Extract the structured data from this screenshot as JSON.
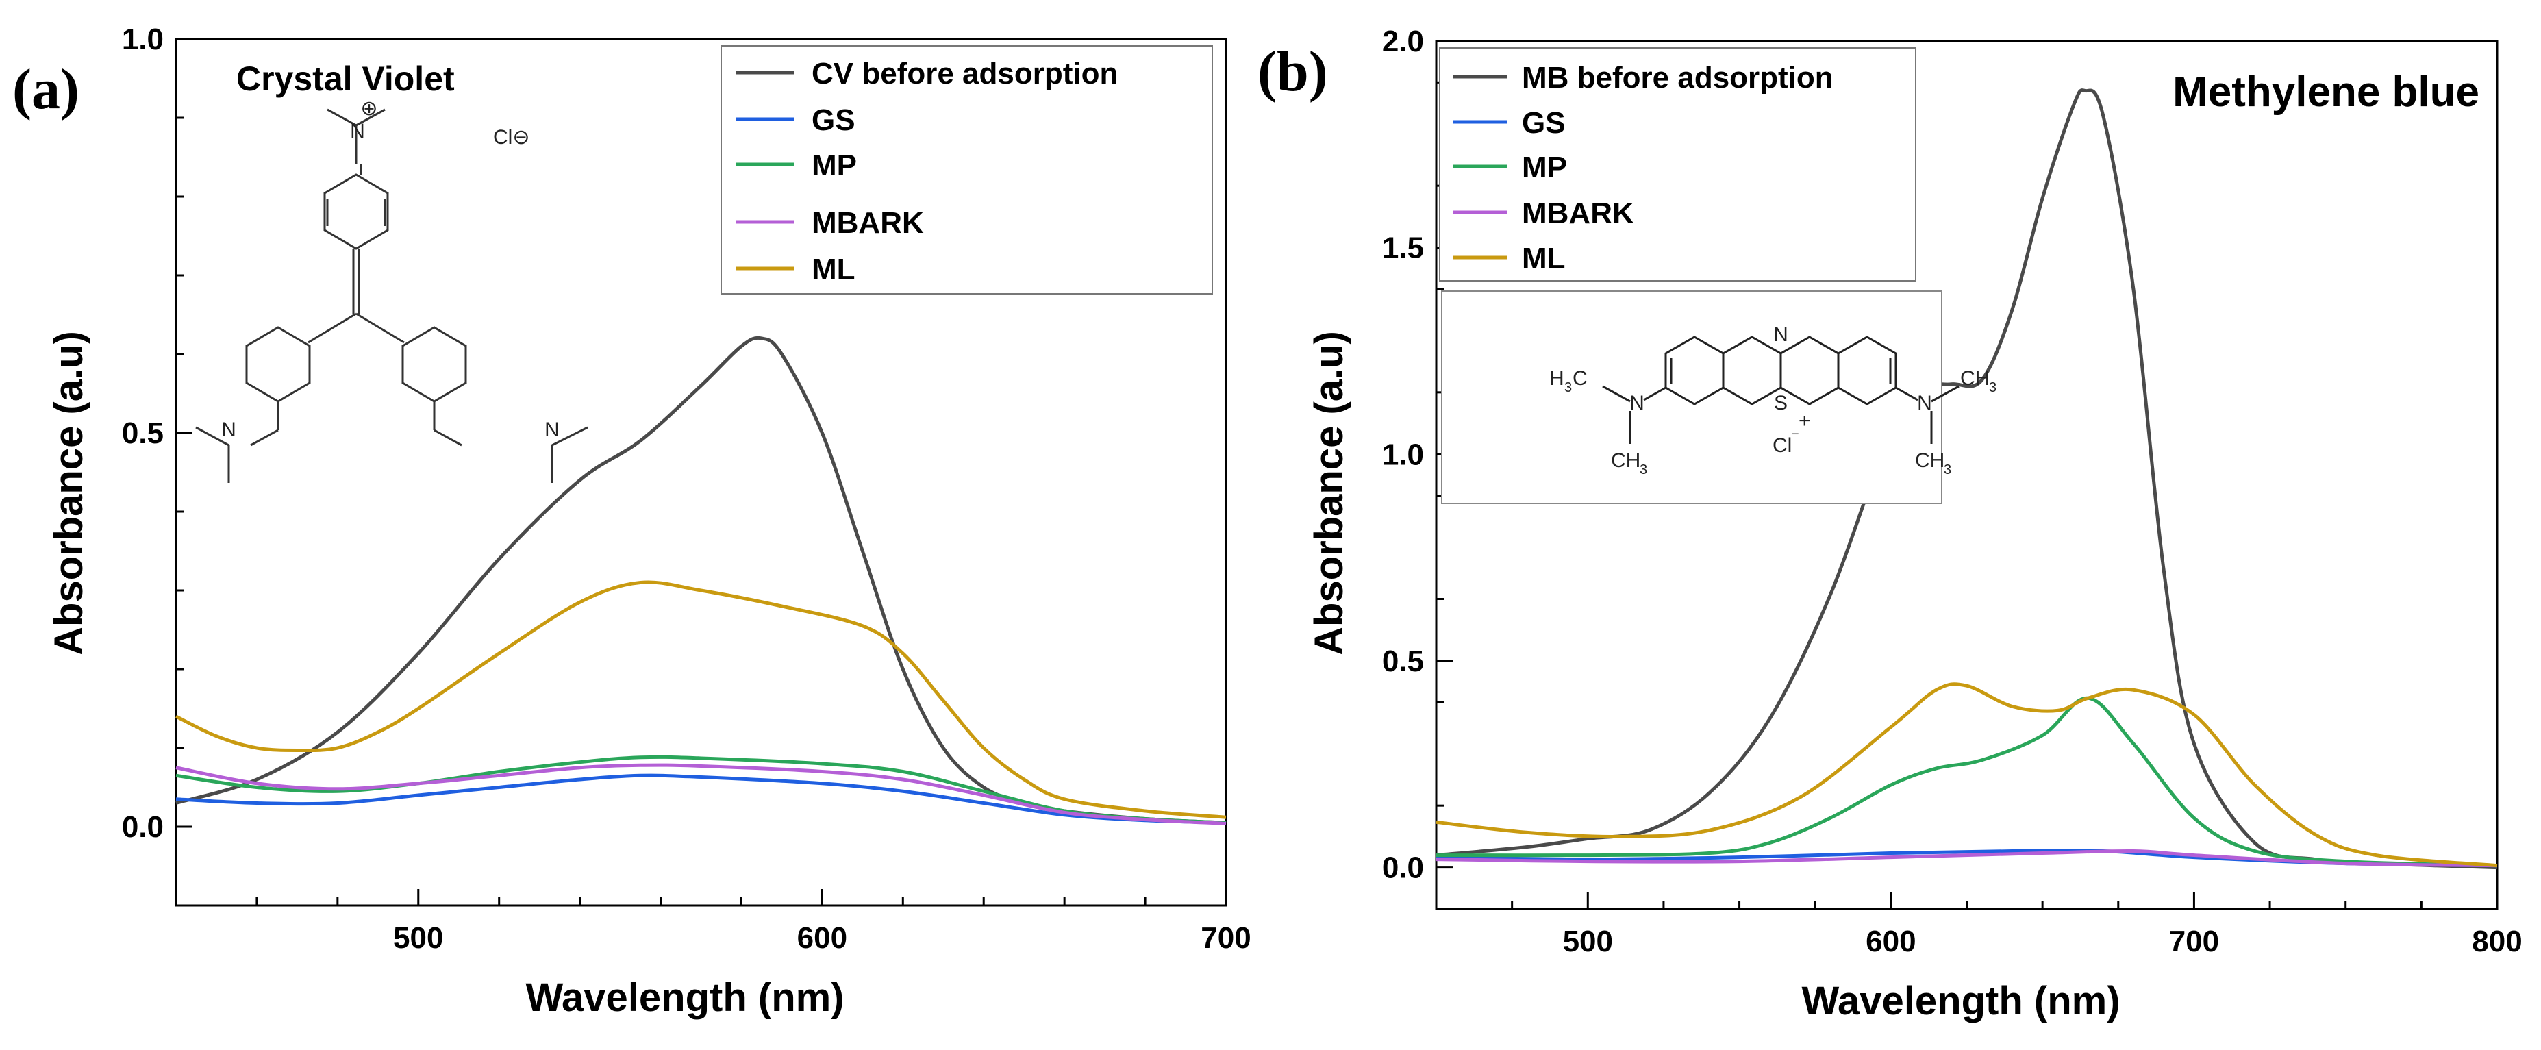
{
  "chart_data": [
    {
      "type": "line",
      "panel_label": "(a)",
      "title": "Crystal Violet",
      "xlabel": "Wavelength (nm)",
      "ylabel": "Absorbance (a.u)",
      "xlim": [
        440,
        700
      ],
      "ylim": [
        -0.1,
        1.0
      ],
      "xticks": [
        500,
        600,
        700
      ],
      "xtick_labels": [
        "500",
        "600",
        "700"
      ],
      "yticks": [
        0.0,
        0.5,
        1.0
      ],
      "ytick_labels": [
        "0.0",
        "0.5",
        "1.0"
      ],
      "legend_position": "top-right",
      "grid": false,
      "structure_labels": {
        "cation": "⊕",
        "anion": "Cl⊖"
      },
      "series": [
        {
          "name": "CV before adsorption",
          "color": "#4a4a4a",
          "x": [
            440,
            460,
            480,
            500,
            520,
            540,
            555,
            570,
            580,
            585,
            590,
            600,
            610,
            620,
            630,
            640,
            650,
            660,
            680,
            700
          ],
          "y": [
            0.03,
            0.06,
            0.12,
            0.22,
            0.34,
            0.44,
            0.49,
            0.56,
            0.61,
            0.62,
            0.6,
            0.5,
            0.35,
            0.2,
            0.1,
            0.05,
            0.03,
            0.02,
            0.01,
            0.005
          ]
        },
        {
          "name": "GS",
          "color": "#1f5fe0",
          "x": [
            440,
            460,
            480,
            500,
            520,
            540,
            555,
            570,
            600,
            620,
            640,
            660,
            680,
            700
          ],
          "y": [
            0.035,
            0.03,
            0.03,
            0.04,
            0.05,
            0.06,
            0.065,
            0.063,
            0.055,
            0.045,
            0.03,
            0.015,
            0.008,
            0.005
          ]
        },
        {
          "name": "MP",
          "color": "#2aa65a",
          "x": [
            440,
            460,
            480,
            500,
            520,
            540,
            555,
            570,
            600,
            620,
            640,
            660,
            680,
            700
          ],
          "y": [
            0.065,
            0.05,
            0.045,
            0.055,
            0.07,
            0.082,
            0.088,
            0.087,
            0.08,
            0.07,
            0.045,
            0.02,
            0.01,
            0.005
          ]
        },
        {
          "name": "MBARK",
          "color": "#b45fd6",
          "x": [
            440,
            460,
            480,
            500,
            520,
            540,
            555,
            570,
            600,
            620,
            640,
            660,
            680,
            700
          ],
          "y": [
            0.075,
            0.055,
            0.048,
            0.055,
            0.065,
            0.075,
            0.078,
            0.077,
            0.07,
            0.06,
            0.04,
            0.018,
            0.009,
            0.004
          ]
        },
        {
          "name": "ML",
          "color": "#c99a10",
          "x": [
            440,
            450,
            460,
            470,
            480,
            490,
            500,
            520,
            540,
            555,
            570,
            590,
            610,
            620,
            630,
            640,
            650,
            660,
            680,
            700
          ],
          "y": [
            0.14,
            0.115,
            0.1,
            0.097,
            0.1,
            0.12,
            0.15,
            0.22,
            0.285,
            0.31,
            0.3,
            0.28,
            0.255,
            0.22,
            0.16,
            0.1,
            0.06,
            0.035,
            0.02,
            0.012
          ]
        }
      ]
    },
    {
      "type": "line",
      "panel_label": "(b)",
      "title": "Methylene blue",
      "xlabel": "Wavelength (nm)",
      "ylabel": "Absorbance (a.u)",
      "xlim": [
        450,
        800
      ],
      "ylim": [
        -0.1,
        2.0
      ],
      "xticks": [
        500,
        600,
        700,
        800
      ],
      "xtick_labels": [
        "500",
        "600",
        "700",
        "800"
      ],
      "yticks": [
        0.0,
        0.5,
        1.0,
        1.5,
        2.0
      ],
      "ytick_labels": [
        "0.0",
        "0.5",
        "1.0",
        "1.5",
        "2.0"
      ],
      "legend_position": "top-left",
      "grid": false,
      "structure_labels": {
        "ring_n": "N",
        "ring_s": "S",
        "plus": "+",
        "left_n": "N",
        "right_n": "N",
        "h3c": "H",
        "h3c_sub": "3",
        "h3c_c": "C",
        "ch3_c": "CH",
        "ch3_sub": "3",
        "anion": "Cl",
        "anion_charge": "−"
      },
      "series": [
        {
          "name": "MB before adsorption",
          "color": "#4a4a4a",
          "x": [
            450,
            480,
            500,
            520,
            540,
            560,
            580,
            600,
            610,
            620,
            630,
            640,
            650,
            660,
            664,
            670,
            680,
            690,
            700,
            720,
            740,
            760,
            800
          ],
          "y": [
            0.03,
            0.05,
            0.07,
            0.09,
            0.18,
            0.36,
            0.66,
            1.06,
            1.16,
            1.17,
            1.18,
            1.35,
            1.62,
            1.84,
            1.88,
            1.82,
            1.4,
            0.72,
            0.3,
            0.06,
            0.02,
            0.01,
            0.0
          ]
        },
        {
          "name": "GS",
          "color": "#1f5fe0",
          "x": [
            450,
            500,
            550,
            600,
            640,
            670,
            700,
            750,
            800
          ],
          "y": [
            0.025,
            0.02,
            0.025,
            0.035,
            0.04,
            0.04,
            0.025,
            0.01,
            0.005
          ]
        },
        {
          "name": "MP",
          "color": "#2aa65a",
          "x": [
            450,
            500,
            540,
            560,
            580,
            600,
            615,
            630,
            650,
            665,
            680,
            700,
            720,
            750,
            800
          ],
          "y": [
            0.03,
            0.03,
            0.035,
            0.06,
            0.12,
            0.2,
            0.24,
            0.26,
            0.32,
            0.41,
            0.3,
            0.12,
            0.04,
            0.015,
            0.005
          ]
        },
        {
          "name": "MBARK",
          "color": "#b45fd6",
          "x": [
            450,
            500,
            550,
            600,
            650,
            680,
            700,
            750,
            800
          ],
          "y": [
            0.02,
            0.015,
            0.015,
            0.025,
            0.035,
            0.04,
            0.03,
            0.01,
            0.005
          ]
        },
        {
          "name": "ML",
          "color": "#c99a10",
          "x": [
            450,
            480,
            510,
            540,
            570,
            600,
            615,
            625,
            640,
            655,
            665,
            680,
            700,
            720,
            740,
            760,
            800
          ],
          "y": [
            0.11,
            0.085,
            0.075,
            0.09,
            0.17,
            0.34,
            0.43,
            0.44,
            0.39,
            0.38,
            0.41,
            0.43,
            0.37,
            0.2,
            0.08,
            0.03,
            0.005
          ]
        }
      ]
    }
  ]
}
